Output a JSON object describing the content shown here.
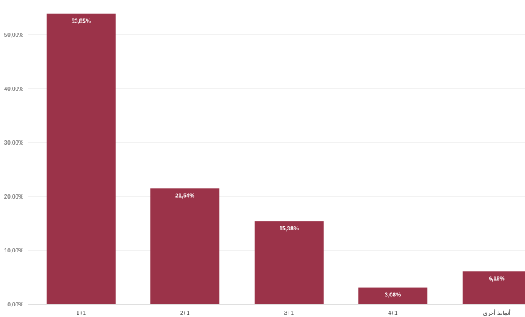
{
  "chart_data": {
    "type": "bar",
    "categories": [
      "1+1",
      "2+1",
      "3+1",
      "4+1",
      "أنماط أخرى"
    ],
    "values": [
      53.85,
      21.54,
      15.38,
      3.08,
      6.15
    ],
    "data_labels": [
      "53,85%",
      "21,54%",
      "15,38%",
      "3,08%",
      "6,15%"
    ],
    "y_ticks": [
      0,
      10,
      20,
      30,
      40,
      50
    ],
    "y_tick_labels": [
      "0,00%",
      "10,00%",
      "20,00%",
      "30,00%",
      "40,00%",
      "50,00%"
    ],
    "ylim": [
      0,
      55
    ],
    "grid": true,
    "bar_color": "#9b3349"
  }
}
